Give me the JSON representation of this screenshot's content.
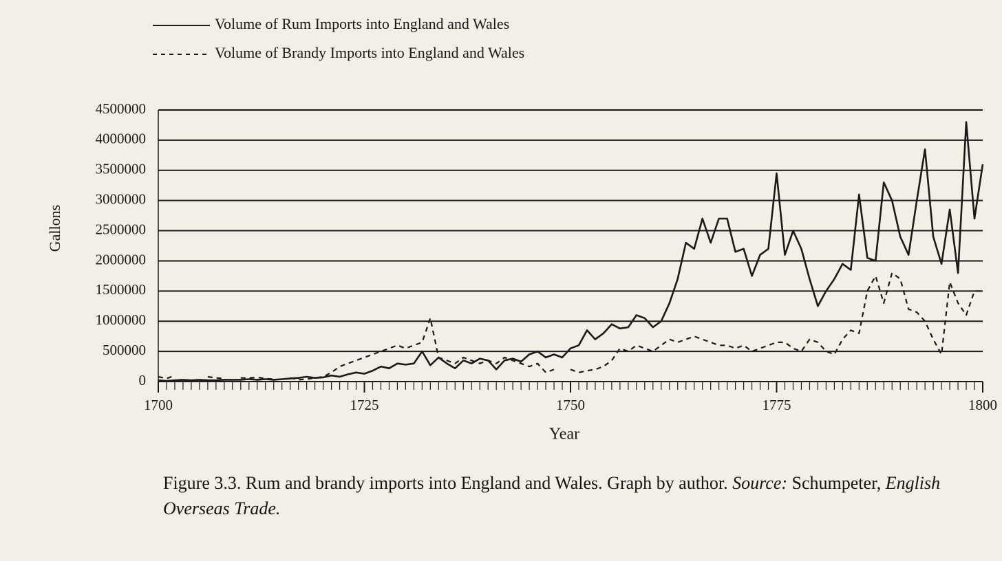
{
  "chart_data": {
    "type": "line",
    "x_label": "Year",
    "y_label": "Gallons",
    "x": [
      1700,
      1701,
      1702,
      1703,
      1704,
      1705,
      1706,
      1707,
      1708,
      1709,
      1710,
      1711,
      1712,
      1713,
      1714,
      1715,
      1716,
      1717,
      1718,
      1719,
      1720,
      1721,
      1722,
      1723,
      1724,
      1725,
      1726,
      1727,
      1728,
      1729,
      1730,
      1731,
      1732,
      1733,
      1734,
      1735,
      1736,
      1737,
      1738,
      1739,
      1740,
      1741,
      1742,
      1743,
      1744,
      1745,
      1746,
      1747,
      1748,
      1749,
      1750,
      1751,
      1752,
      1753,
      1754,
      1755,
      1756,
      1757,
      1758,
      1759,
      1760,
      1761,
      1762,
      1763,
      1764,
      1765,
      1766,
      1767,
      1768,
      1769,
      1770,
      1771,
      1772,
      1773,
      1774,
      1775,
      1776,
      1777,
      1778,
      1779,
      1780,
      1781,
      1782,
      1783,
      1784,
      1785,
      1786,
      1787,
      1788,
      1789,
      1790,
      1791,
      1792,
      1793,
      1794,
      1795,
      1796,
      1797,
      1798,
      1799,
      1800
    ],
    "series": [
      {
        "name": "Volume of Rum Imports into England and Wales",
        "color": "#1a1a1a",
        "style": "solid",
        "values": [
          20000,
          10000,
          20000,
          30000,
          20000,
          30000,
          20000,
          20000,
          30000,
          30000,
          30000,
          40000,
          30000,
          40000,
          30000,
          40000,
          50000,
          60000,
          80000,
          60000,
          70000,
          100000,
          80000,
          120000,
          150000,
          130000,
          180000,
          250000,
          220000,
          300000,
          280000,
          300000,
          500000,
          270000,
          400000,
          300000,
          220000,
          350000,
          300000,
          380000,
          350000,
          200000,
          350000,
          380000,
          330000,
          450000,
          500000,
          400000,
          450000,
          400000,
          550000,
          600000,
          850000,
          700000,
          800000,
          950000,
          880000,
          900000,
          1100000,
          1050000,
          900000,
          1000000,
          1300000,
          1700000,
          2300000,
          2200000,
          2700000,
          2300000,
          2700000,
          2700000,
          2150000,
          2200000,
          1750000,
          2100000,
          2200000,
          3450000,
          2100000,
          2500000,
          2200000,
          1700000,
          1250000,
          1500000,
          1700000,
          1950000,
          1850000,
          3100000,
          2050000,
          2000000,
          3300000,
          3000000,
          2400000,
          2100000,
          3000000,
          3850000,
          2400000,
          1950000,
          2850000,
          1800000,
          4300000,
          2700000,
          3600000
        ]
      },
      {
        "name": "Volume of Brandy Imports into England and Wales",
        "color": "#1a1a1a",
        "style": "dashed",
        "values": [
          80000,
          50000,
          100000,
          null,
          140000,
          null,
          80000,
          60000,
          50000,
          null,
          60000,
          60000,
          70000,
          50000,
          40000,
          null,
          60000,
          30000,
          40000,
          60000,
          80000,
          150000,
          250000,
          300000,
          350000,
          400000,
          450000,
          500000,
          550000,
          600000,
          550000,
          600000,
          650000,
          1050000,
          400000,
          350000,
          300000,
          400000,
          350000,
          300000,
          350000,
          300000,
          400000,
          350000,
          300000,
          250000,
          300000,
          150000,
          200000,
          null,
          200000,
          150000,
          180000,
          200000,
          250000,
          350000,
          550000,
          500000,
          600000,
          550000,
          500000,
          600000,
          700000,
          650000,
          700000,
          750000,
          700000,
          650000,
          600000,
          600000,
          550000,
          600000,
          500000,
          550000,
          600000,
          650000,
          650000,
          550000,
          500000,
          700000,
          650000,
          500000,
          450000,
          700000,
          850000,
          800000,
          1500000,
          1750000,
          1300000,
          1800000,
          1700000,
          1200000,
          1150000,
          1000000,
          700000,
          450000,
          1650000,
          1300000,
          1100000,
          1500000,
          1500000
        ]
      }
    ],
    "xlim": [
      1700,
      1800
    ],
    "xticks": [
      1700,
      1725,
      1750,
      1775,
      1800
    ],
    "ylim": [
      0,
      4500000
    ],
    "yticks": [
      0,
      500000,
      1000000,
      1500000,
      2000000,
      2500000,
      3000000,
      3500000,
      4000000,
      4500000
    ],
    "grid": true,
    "caption": {
      "text": "Figure 3.3. Rum and brandy imports into England and Wales. Graph by author.",
      "source_label": "Source:",
      "source": "Schumpeter,",
      "source_title": "English Overseas Trade."
    }
  }
}
